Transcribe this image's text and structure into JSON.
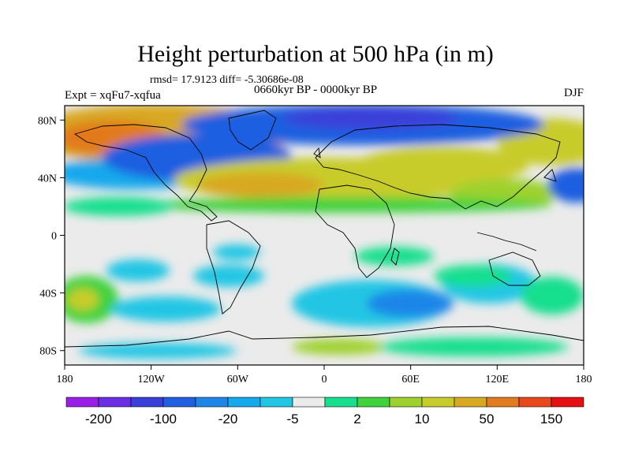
{
  "title": "Height perturbation at 500 hPa (in m)",
  "subtitle_stats": "rmsd= 17.9123 diff= -5.30686e-08",
  "subtitle_period": "0660kyr BP - 0000kyr BP",
  "experiment_label": "Expt = xqFu7-xqfua",
  "season_label": "DJF",
  "lat_ticks": [
    "80N",
    "40N",
    "0",
    "40S",
    "80S"
  ],
  "lon_ticks": [
    "180",
    "120W",
    "60W",
    "0",
    "60E",
    "120E",
    "180"
  ],
  "colorbar": {
    "colors": [
      "#9a1fe6",
      "#6b2ee6",
      "#3a3fd9",
      "#1f5fe0",
      "#1e86e8",
      "#14a8ec",
      "#21c6e4",
      "#ebebeb",
      "#18df8e",
      "#3fd23c",
      "#9ed12d",
      "#c8cc2a",
      "#d8a822",
      "#e27a1f",
      "#e9471c",
      "#e60f12"
    ],
    "labels": [
      "-200",
      "-100",
      "-20",
      "-5",
      "2",
      "10",
      "50",
      "150"
    ]
  },
  "chart_data": {
    "type": "heatmap",
    "title": "Height perturbation at 500 hPa (in m)",
    "xlim": [
      -180,
      180
    ],
    "ylim": [
      -90,
      90
    ],
    "x_ticks": [
      "180",
      "120W",
      "60W",
      "0",
      "60E",
      "120E",
      "180"
    ],
    "y_ticks": [
      "80N",
      "40N",
      "0",
      "40S",
      "80S"
    ],
    "levels_labeled": [
      -200,
      -100,
      -20,
      -5,
      2,
      10,
      50,
      150
    ],
    "features": [
      {
        "desc": "positive anomaly",
        "lon": -150,
        "lat": 60,
        "value": 50
      },
      {
        "desc": "negative anomaly",
        "lon": -80,
        "lat": 50,
        "value": -50
      },
      {
        "desc": "negative anomaly",
        "lon": 30,
        "lat": 78,
        "value": -60
      },
      {
        "desc": "positive anomaly",
        "lon": -30,
        "lat": 40,
        "value": 40
      },
      {
        "desc": "positive anomaly",
        "lon": 60,
        "lat": 45,
        "value": 45
      },
      {
        "desc": "positive anomaly",
        "lon": 150,
        "lat": 70,
        "value": 40
      },
      {
        "desc": "negative anomaly",
        "lon": 170,
        "lat": 42,
        "value": -30
      },
      {
        "desc": "negative anomaly",
        "lon": 20,
        "lat": -53,
        "value": -20
      },
      {
        "desc": "negative anomaly",
        "lon": 100,
        "lat": -50,
        "value": -20
      },
      {
        "desc": "positive anomaly",
        "lon": -175,
        "lat": -50,
        "value": 20
      }
    ]
  }
}
